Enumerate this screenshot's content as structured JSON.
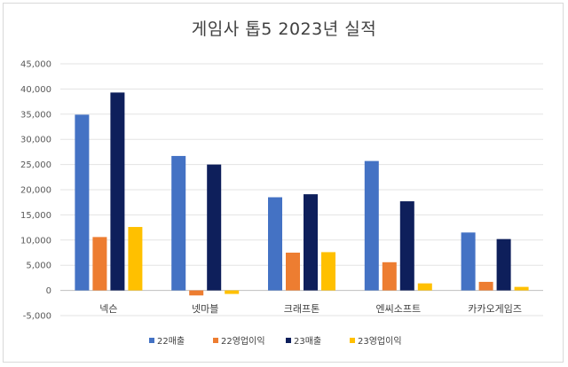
{
  "chart_data": {
    "type": "bar",
    "title": "게임사 톱5 2023년 실적",
    "categories": [
      "넥슨",
      "넷마블",
      "크래프톤",
      "엔씨소프트",
      "카카오게임즈"
    ],
    "series": [
      {
        "name": "22매출",
        "color": "#4472c4",
        "values": [
          34900,
          26700,
          18500,
          25700,
          11500
        ]
      },
      {
        "name": "22영업이익",
        "color": "#ed7d31",
        "values": [
          10600,
          -1000,
          7500,
          5600,
          1700
        ]
      },
      {
        "name": "23매출",
        "color": "#0e1f5b",
        "values": [
          39300,
          25000,
          19100,
          17700,
          10200
        ]
      },
      {
        "name": "23영업이익",
        "color": "#ffc000",
        "values": [
          12600,
          -700,
          7600,
          1400,
          700
        ]
      }
    ],
    "yticks": [
      "-5,000",
      "0",
      "5,000",
      "10,000",
      "15,000",
      "20,000",
      "25,000",
      "30,000",
      "35,000",
      "40,000",
      "45,000"
    ],
    "ylim": [
      -5000,
      45000
    ],
    "grid": true,
    "legend": "bottom"
  }
}
